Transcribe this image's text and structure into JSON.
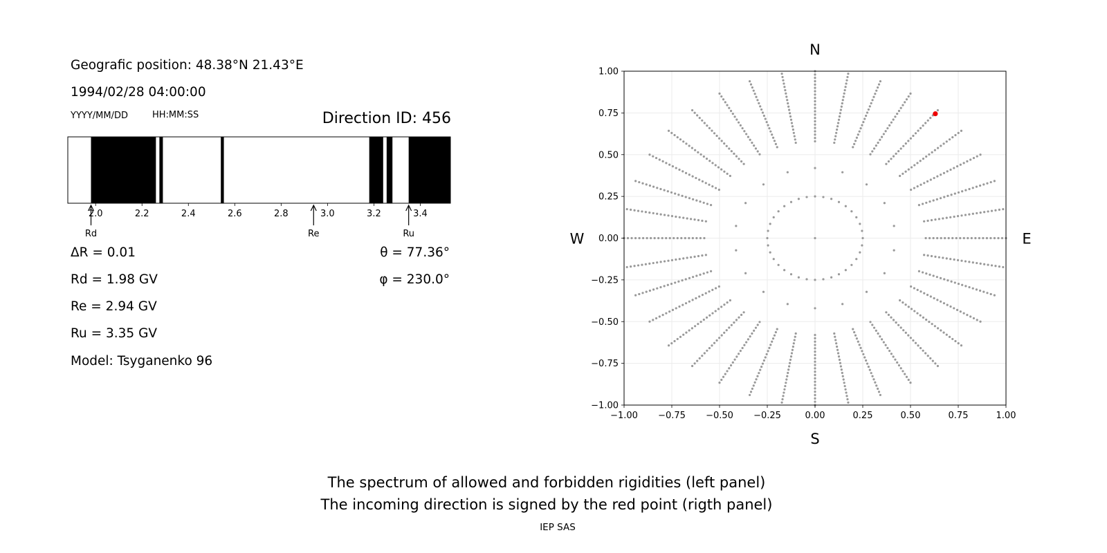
{
  "info": {
    "position": "Geografic position: 48.38°N 21.43°E",
    "datetime": "1994/02/28 04:00:00",
    "date_format": "YYYY/MM/DD",
    "time_format": "HH:MM:SS",
    "direction_id": "Direction ID: 456"
  },
  "results": {
    "delta_r": "ΔR = 0.01",
    "rd": "Rd = 1.98 GV",
    "re": "Re = 2.94 GV",
    "ru": "Ru = 3.35 GV",
    "model": "Model: Tsyganenko 96",
    "theta": "θ = 77.36°",
    "phi": "φ = 230.0°"
  },
  "caption": {
    "line1": "The spectrum of allowed and forbidden rigidities (left panel)",
    "line2": "The incoming direction is signed by the red point (rigth panel)",
    "footer": "IEP SAS"
  },
  "colors": {
    "forbidden": "#000000",
    "allowed": "#ffffff",
    "grid_point": "#999999",
    "highlight_point": "#ee0000"
  },
  "chart_data": [
    {
      "type": "bar",
      "name": "rigidity-spectrum",
      "xlim": [
        1.88,
        3.53
      ],
      "x_ticks": [
        2.0,
        2.2,
        2.4,
        2.6,
        2.8,
        3.0,
        3.2,
        3.4
      ],
      "forbidden_bands": [
        [
          1.98,
          2.26
        ],
        [
          2.275,
          2.29
        ],
        [
          2.54,
          2.553
        ],
        [
          3.18,
          3.24
        ],
        [
          3.255,
          3.28
        ],
        [
          3.35,
          3.53
        ]
      ],
      "markers": [
        {
          "label": "Rd",
          "x": 1.98
        },
        {
          "label": "Re",
          "x": 2.94
        },
        {
          "label": "Ru",
          "x": 3.35
        }
      ]
    },
    {
      "type": "scatter",
      "name": "asymptotic-directions",
      "xlim": [
        -1.0,
        1.0
      ],
      "ylim": [
        -1.0,
        1.0
      ],
      "x_ticks": [
        "−1.00",
        "−0.75",
        "−0.50",
        "−0.25",
        "0.00",
        "0.25",
        "0.50",
        "0.75",
        "1.00"
      ],
      "y_ticks": [
        "1.00",
        "0.75",
        "0.50",
        "0.25",
        "0.00",
        "−0.25",
        "−0.50",
        "−0.75",
        "−1.00"
      ],
      "grid": true,
      "compass": {
        "north": "N",
        "south": "S",
        "east": "E",
        "west": "W"
      },
      "pattern": {
        "azimuth_step_deg": 10,
        "rings": [
          {
            "radius": 0.25,
            "azimuth_step_deg": 10
          },
          {
            "radius": 0.42,
            "azimuth_step_deg": 20
          },
          {
            "radius": 0.58,
            "azimuth_step_deg": 10
          }
        ],
        "radial_start": 0.6,
        "radial_end": 1.0,
        "center_point": true
      },
      "highlight": {
        "x": 0.63,
        "y": 0.745
      }
    }
  ]
}
